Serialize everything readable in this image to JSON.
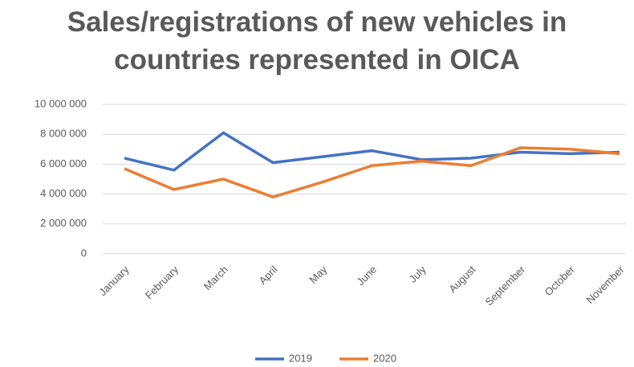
{
  "chart_data": {
    "type": "line",
    "title": "Sales/registrations of new vehicles in countries represented in OICA",
    "categories": [
      "January",
      "February",
      "March",
      "April",
      "May",
      "June",
      "July",
      "August",
      "September",
      "October",
      "November"
    ],
    "series": [
      {
        "name": "2019",
        "color": "#4472c4",
        "values": [
          6400000,
          5600000,
          8100000,
          6100000,
          6500000,
          6900000,
          6300000,
          6400000,
          6800000,
          6700000,
          6800000
        ]
      },
      {
        "name": "2020",
        "color": "#ed7d31",
        "values": [
          5700000,
          4300000,
          5000000,
          3800000,
          4800000,
          5900000,
          6200000,
          5900000,
          7100000,
          7000000,
          6700000
        ]
      }
    ],
    "ylim": [
      0,
      10000000
    ],
    "yticks": [
      0,
      {
        "value": 2000000,
        "label": "2 000 000"
      },
      {
        "value": 4000000,
        "label": "4 000 000"
      },
      {
        "value": 6000000,
        "label": "6 000 000"
      },
      {
        "value": 8000000,
        "label": "8 000 000"
      },
      {
        "value": 10000000,
        "label": "10 000 000"
      }
    ],
    "grid": true,
    "legend": "bottom"
  }
}
